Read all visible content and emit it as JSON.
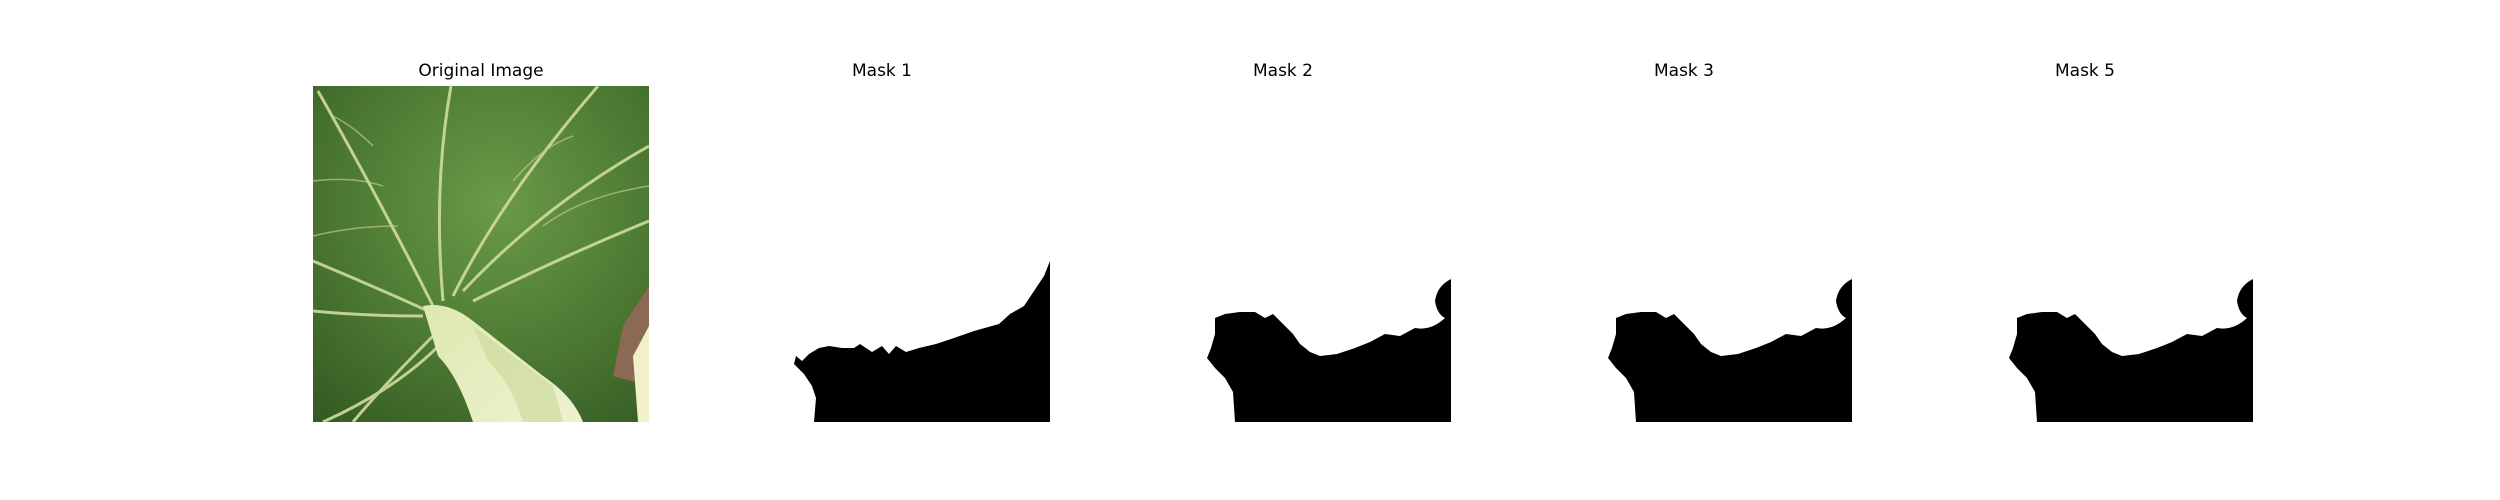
{
  "figure": {
    "panels": [
      {
        "title": "Original Image",
        "kind": "photo",
        "subject": "leaf"
      },
      {
        "title": "Mask 1",
        "kind": "mask"
      },
      {
        "title": "Mask 2",
        "kind": "mask"
      },
      {
        "title": "Mask 3",
        "kind": "mask"
      },
      {
        "title": "Mask 5",
        "kind": "mask"
      }
    ]
  },
  "colors": {
    "background": "#ffffff",
    "mask_foreground": "#000000",
    "leaf_dark": "#3f6a2c",
    "leaf_mid": "#5b8a3a",
    "vein": "#d6e3a3",
    "stem": "#e7ecc0"
  }
}
